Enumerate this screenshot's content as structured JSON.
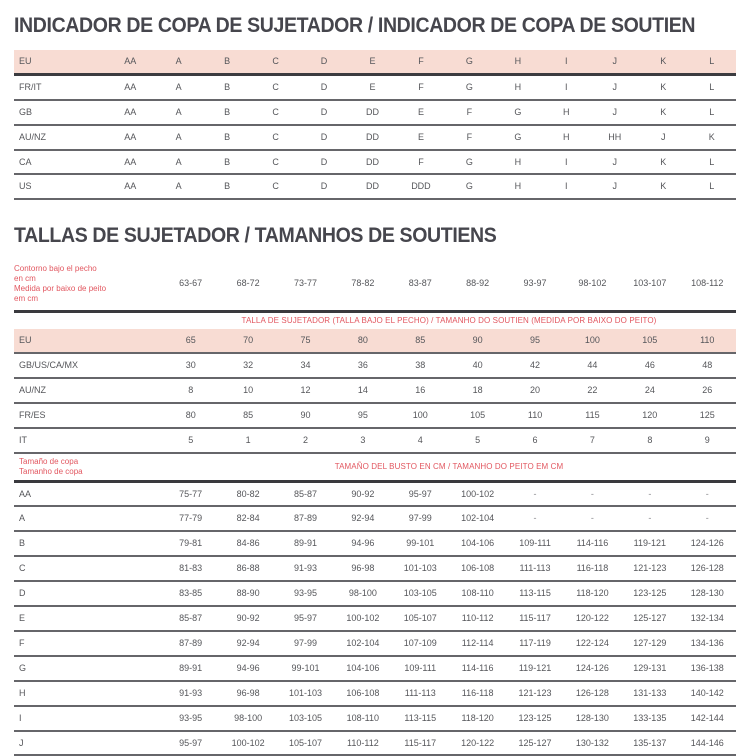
{
  "page": {
    "title1": "INDICADOR DE COPA DE SUJETADOR / INDICADOR DE COPA DE SOUTIEN",
    "title2": "TALLAS DE SUJETADOR  / TAMANHOS DE SOUTIENS"
  },
  "colors": {
    "highlight_bg": "#f8dcd3",
    "accent_red": "#e25760",
    "text_gray": "#55565a",
    "border_dark": "#3a3a3e"
  },
  "cup_indicator_table": {
    "rows": [
      {
        "label": "EU",
        "highlight": true,
        "values": [
          "AA",
          "A",
          "B",
          "C",
          "D",
          "E",
          "F",
          "G",
          "H",
          "I",
          "J",
          "K",
          "L"
        ]
      },
      {
        "label": "FR/IT",
        "highlight": false,
        "values": [
          "AA",
          "A",
          "B",
          "C",
          "D",
          "E",
          "F",
          "G",
          "H",
          "I",
          "J",
          "K",
          "L"
        ]
      },
      {
        "label": "GB",
        "highlight": false,
        "values": [
          "AA",
          "A",
          "B",
          "C",
          "D",
          "DD",
          "E",
          "F",
          "G",
          "H",
          "J",
          "K",
          "L"
        ]
      },
      {
        "label": "AU/NZ",
        "highlight": false,
        "values": [
          "AA",
          "A",
          "B",
          "C",
          "D",
          "DD",
          "E",
          "F",
          "G",
          "H",
          "HH",
          "J",
          "K"
        ]
      },
      {
        "label": "CA",
        "highlight": false,
        "values": [
          "AA",
          "A",
          "B",
          "C",
          "D",
          "DD",
          "F",
          "G",
          "H",
          "I",
          "J",
          "K",
          "L"
        ]
      },
      {
        "label": "US",
        "highlight": false,
        "values": [
          "AA",
          "A",
          "B",
          "C",
          "D",
          "DD",
          "DDD",
          "G",
          "H",
          "I",
          "J",
          "K",
          "L"
        ]
      }
    ]
  },
  "band_size_table": {
    "underbust_label_lines": [
      "Contorno bajo el pecho",
      "en cm",
      "Medida por baixo de peito",
      "em cm"
    ],
    "underbust_ranges": [
      "63-67",
      "68-72",
      "73-77",
      "78-82",
      "83-87",
      "88-92",
      "93-97",
      "98-102",
      "103-107",
      "108-112"
    ],
    "band_caption": "TALLA DE SUJETADOR (TALLA BAJO EL PECHO) /  TAMANHO DO SOUTIEN (MEDIDA POR BAIXO DO PEITO)",
    "size_rows": [
      {
        "label": "EU",
        "highlight": true,
        "values": [
          "65",
          "70",
          "75",
          "80",
          "85",
          "90",
          "95",
          "100",
          "105",
          "110"
        ]
      },
      {
        "label": "GB/US/CA/MX",
        "highlight": false,
        "values": [
          "30",
          "32",
          "34",
          "36",
          "38",
          "40",
          "42",
          "44",
          "46",
          "48"
        ]
      },
      {
        "label": "AU/NZ",
        "highlight": false,
        "values": [
          "8",
          "10",
          "12",
          "14",
          "16",
          "18",
          "20",
          "22",
          "24",
          "26"
        ]
      },
      {
        "label": "FR/ES",
        "highlight": false,
        "values": [
          "80",
          "85",
          "90",
          "95",
          "100",
          "105",
          "110",
          "115",
          "120",
          "125"
        ]
      },
      {
        "label": "IT",
        "highlight": false,
        "values": [
          "5",
          "1",
          "2",
          "3",
          "4",
          "5",
          "6",
          "7",
          "8",
          "9"
        ]
      }
    ],
    "cup_label_lines": [
      "Tamaño de copa",
      "Tamanho de copa"
    ],
    "bust_caption": "TAMAÑO DEL BUSTO EN CM /  TAMANHO DO PEITO EM CM",
    "cup_rows": [
      {
        "label": "AA",
        "values": [
          "75-77",
          "80-82",
          "85-87",
          "90-92",
          "95-97",
          "100-102",
          "-",
          "-",
          "-",
          "-"
        ]
      },
      {
        "label": "A",
        "values": [
          "77-79",
          "82-84",
          "87-89",
          "92-94",
          "97-99",
          "102-104",
          "-",
          "-",
          "-",
          "-"
        ]
      },
      {
        "label": "B",
        "values": [
          "79-81",
          "84-86",
          "89-91",
          "94-96",
          "99-101",
          "104-106",
          "109-111",
          "114-116",
          "119-121",
          "124-126"
        ]
      },
      {
        "label": "C",
        "values": [
          "81-83",
          "86-88",
          "91-93",
          "96-98",
          "101-103",
          "106-108",
          "111-113",
          "116-118",
          "121-123",
          "126-128"
        ]
      },
      {
        "label": "D",
        "values": [
          "83-85",
          "88-90",
          "93-95",
          "98-100",
          "103-105",
          "108-110",
          "113-115",
          "118-120",
          "123-125",
          "128-130"
        ]
      },
      {
        "label": "E",
        "values": [
          "85-87",
          "90-92",
          "95-97",
          "100-102",
          "105-107",
          "110-112",
          "115-117",
          "120-122",
          "125-127",
          "132-134"
        ]
      },
      {
        "label": "F",
        "values": [
          "87-89",
          "92-94",
          "97-99",
          "102-104",
          "107-109",
          "112-114",
          "117-119",
          "122-124",
          "127-129",
          "134-136"
        ]
      },
      {
        "label": "G",
        "values": [
          "89-91",
          "94-96",
          "99-101",
          "104-106",
          "109-111",
          "114-116",
          "119-121",
          "124-126",
          "129-131",
          "136-138"
        ]
      },
      {
        "label": "H",
        "values": [
          "91-93",
          "96-98",
          "101-103",
          "106-108",
          "111-113",
          "116-118",
          "121-123",
          "126-128",
          "131-133",
          "140-142"
        ]
      },
      {
        "label": "I",
        "values": [
          "93-95",
          "98-100",
          "103-105",
          "108-110",
          "113-115",
          "118-120",
          "123-125",
          "128-130",
          "133-135",
          "142-144"
        ]
      },
      {
        "label": "J",
        "values": [
          "95-97",
          "100-102",
          "105-107",
          "110-112",
          "115-117",
          "120-122",
          "125-127",
          "130-132",
          "135-137",
          "144-146"
        ]
      }
    ]
  }
}
